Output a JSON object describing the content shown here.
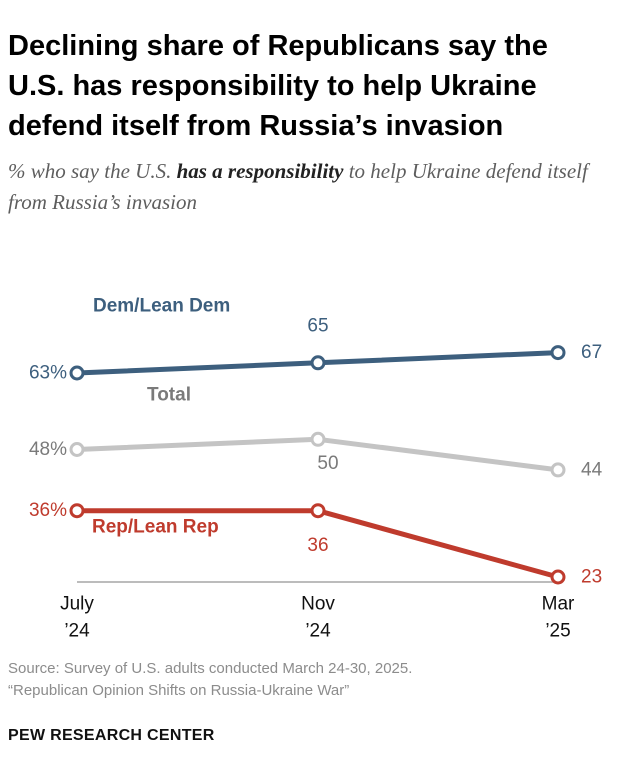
{
  "title": "Declining share of Republicans say the U.S. has responsibility to help Ukraine defend itself from Russia’s invasion",
  "subtitle": {
    "pre": "% who say the U.S. ",
    "bold": "has a responsibility",
    "post": " to help Ukraine defend itself from Russia’s invasion"
  },
  "chart_data": {
    "type": "line",
    "title": "Declining share of Republicans say the U.S. has responsibility to help Ukraine defend itself from Russia’s invasion",
    "subtitle": "% who say the U.S. has a responsibility to help Ukraine defend itself from Russia’s invasion",
    "x": [
      {
        "line1": "July",
        "line2": "’24"
      },
      {
        "line1": "Nov",
        "line2": "’24"
      },
      {
        "line1": "Mar",
        "line2": "’25"
      }
    ],
    "ylim": [
      0,
      100
    ],
    "grid": false,
    "xlabel": "",
    "ylabel": "",
    "series": [
      {
        "key": "dem",
        "name": "Dem/Lean Dem",
        "color": "#3d5f7e",
        "values": [
          63,
          65,
          67
        ],
        "labels": [
          "63%",
          "65",
          "67"
        ]
      },
      {
        "key": "total",
        "name": "Total",
        "color": "#c4c4c4",
        "label_color": "#7a7a7a",
        "values": [
          48,
          50,
          44
        ],
        "labels": [
          "48%",
          "50",
          "44"
        ]
      },
      {
        "key": "rep",
        "name": "Rep/Lean Rep",
        "color": "#bf3b2d",
        "values": [
          36,
          36,
          23
        ],
        "labels": [
          "36%",
          "36",
          "23"
        ]
      }
    ]
  },
  "source": {
    "line1": "Source: Survey of U.S. adults conducted March 24-30, 2025.",
    "line2": "“Republican Opinion Shifts on Russia-Ukraine War”"
  },
  "logo": "PEW RESEARCH CENTER"
}
